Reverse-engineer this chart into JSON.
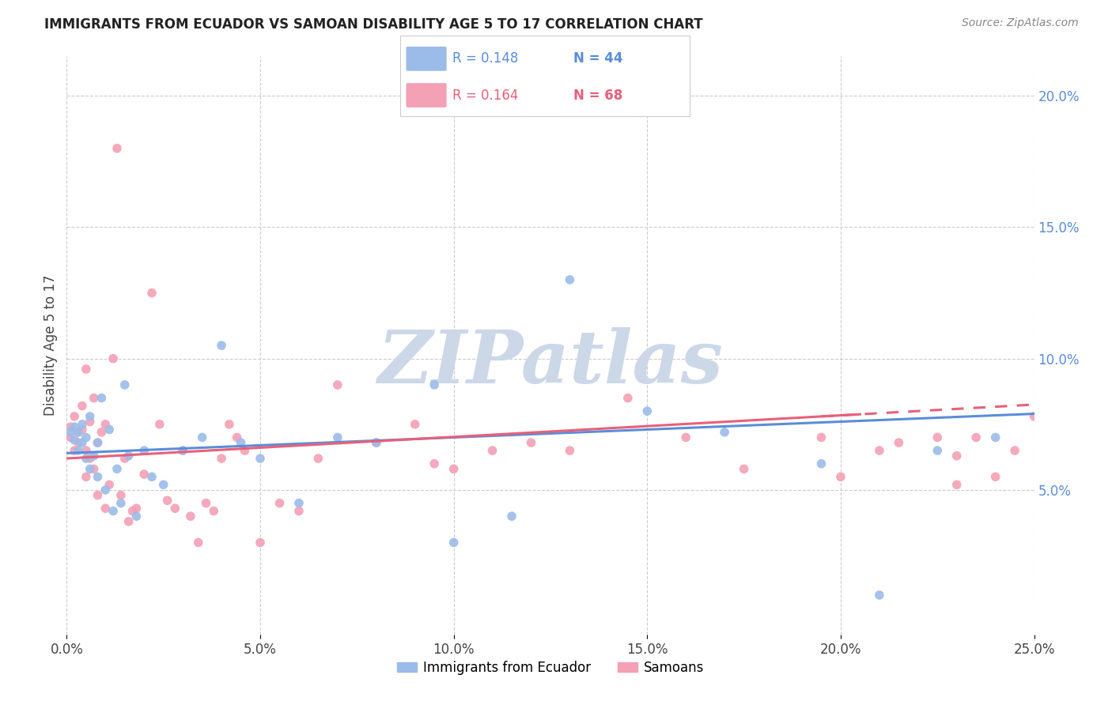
{
  "title": "IMMIGRANTS FROM ECUADOR VS SAMOAN DISABILITY AGE 5 TO 17 CORRELATION CHART",
  "source": "Source: ZipAtlas.com",
  "ylabel": "Disability Age 5 to 17",
  "xlim": [
    0.0,
    0.25
  ],
  "ylim": [
    -0.005,
    0.215
  ],
  "xticks": [
    0.0,
    0.05,
    0.1,
    0.15,
    0.2,
    0.25
  ],
  "xtick_labels": [
    "0.0%",
    "5.0%",
    "10.0%",
    "15.0%",
    "20.0%",
    "25.0%"
  ],
  "yticks_right": [
    0.05,
    0.1,
    0.15,
    0.2
  ],
  "ytick_right_labels": [
    "5.0%",
    "10.0%",
    "15.0%",
    "20.0%"
  ],
  "legend_r1": "0.148",
  "legend_n1": "44",
  "legend_r2": "0.164",
  "legend_n2": "68",
  "color_ecuador": "#9bbce8",
  "color_samoan": "#f4a0b5",
  "color_ecuador_line": "#5b8dd9",
  "color_samoan_line": "#e8607a",
  "watermark": "ZIPatlas",
  "watermark_color": "#ccd8e8",
  "ecuador_x": [
    0.001,
    0.002,
    0.002,
    0.003,
    0.003,
    0.004,
    0.004,
    0.005,
    0.005,
    0.006,
    0.006,
    0.007,
    0.008,
    0.008,
    0.009,
    0.01,
    0.011,
    0.012,
    0.013,
    0.014,
    0.015,
    0.016,
    0.018,
    0.02,
    0.022,
    0.025,
    0.03,
    0.035,
    0.04,
    0.045,
    0.05,
    0.06,
    0.07,
    0.08,
    0.095,
    0.1,
    0.115,
    0.13,
    0.15,
    0.17,
    0.195,
    0.21,
    0.225,
    0.24
  ],
  "ecuador_y": [
    0.072,
    0.069,
    0.074,
    0.065,
    0.072,
    0.068,
    0.075,
    0.062,
    0.07,
    0.058,
    0.078,
    0.063,
    0.068,
    0.055,
    0.085,
    0.05,
    0.073,
    0.042,
    0.058,
    0.045,
    0.09,
    0.063,
    0.04,
    0.065,
    0.055,
    0.052,
    0.065,
    0.07,
    0.105,
    0.068,
    0.062,
    0.045,
    0.07,
    0.068,
    0.09,
    0.03,
    0.04,
    0.13,
    0.08,
    0.072,
    0.06,
    0.01,
    0.065,
    0.07
  ],
  "samoan_x": [
    0.001,
    0.001,
    0.002,
    0.002,
    0.003,
    0.003,
    0.004,
    0.004,
    0.005,
    0.005,
    0.005,
    0.006,
    0.006,
    0.007,
    0.007,
    0.008,
    0.008,
    0.009,
    0.01,
    0.01,
    0.011,
    0.012,
    0.013,
    0.014,
    0.015,
    0.016,
    0.017,
    0.018,
    0.02,
    0.022,
    0.024,
    0.026,
    0.028,
    0.03,
    0.032,
    0.034,
    0.036,
    0.038,
    0.04,
    0.042,
    0.044,
    0.046,
    0.05,
    0.055,
    0.06,
    0.065,
    0.07,
    0.08,
    0.09,
    0.095,
    0.1,
    0.11,
    0.12,
    0.13,
    0.145,
    0.16,
    0.175,
    0.195,
    0.21,
    0.225,
    0.23,
    0.235,
    0.24,
    0.245,
    0.25,
    0.23,
    0.215,
    0.2
  ],
  "samoan_y": [
    0.074,
    0.07,
    0.065,
    0.078,
    0.072,
    0.068,
    0.082,
    0.073,
    0.096,
    0.065,
    0.055,
    0.076,
    0.062,
    0.058,
    0.085,
    0.068,
    0.048,
    0.072,
    0.043,
    0.075,
    0.052,
    0.1,
    0.18,
    0.048,
    0.062,
    0.038,
    0.042,
    0.043,
    0.056,
    0.125,
    0.075,
    0.046,
    0.043,
    0.065,
    0.04,
    0.03,
    0.045,
    0.042,
    0.062,
    0.075,
    0.07,
    0.065,
    0.03,
    0.045,
    0.042,
    0.062,
    0.09,
    0.068,
    0.075,
    0.06,
    0.058,
    0.065,
    0.068,
    0.065,
    0.085,
    0.07,
    0.058,
    0.07,
    0.065,
    0.07,
    0.052,
    0.07,
    0.055,
    0.065,
    0.078,
    0.063,
    0.068,
    0.055
  ]
}
